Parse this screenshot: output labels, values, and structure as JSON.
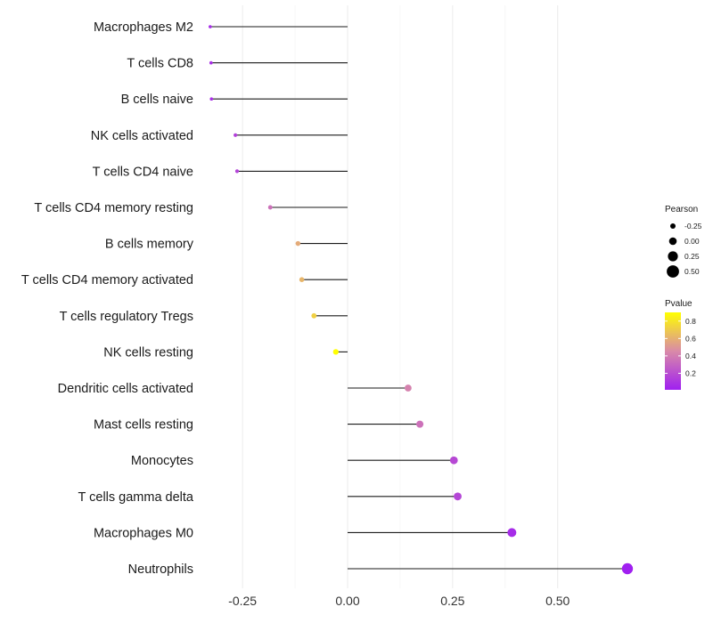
{
  "chart_data": {
    "type": "lollipop",
    "title": "",
    "xlabel": "",
    "ylabel": "",
    "xlim": [
      -0.35,
      0.7
    ],
    "x_ticks": [
      -0.25,
      0.0,
      0.25,
      0.5
    ],
    "x_tick_labels": [
      "-0.25",
      "0.00",
      "0.25",
      "0.50"
    ],
    "grid": true,
    "categories": [
      "Macrophages M2",
      "T cells CD8",
      "B cells naive",
      "NK cells activated",
      "T cells CD4 naive",
      "T cells CD4 memory resting",
      "B cells memory",
      "T cells CD4 memory activated",
      "T cells regulatory  Tregs ",
      "NK cells resting",
      "Dendritic cells activated",
      "Mast cells resting",
      "Monocytes",
      "T cells gamma delta",
      "Macrophages M0",
      "Neutrophils"
    ],
    "pearson": [
      -0.327,
      -0.325,
      -0.324,
      -0.267,
      -0.263,
      -0.184,
      -0.118,
      -0.109,
      -0.08,
      -0.028,
      0.144,
      0.172,
      0.253,
      0.262,
      0.391,
      0.666
    ],
    "pvalue": [
      0.06,
      0.07,
      0.07,
      0.15,
      0.16,
      0.35,
      0.58,
      0.62,
      0.72,
      0.9,
      0.42,
      0.35,
      0.18,
      0.17,
      0.06,
      0.01
    ],
    "legend": {
      "position": "right",
      "size_title": "Pearson",
      "size_breaks": [
        -0.25,
        0.0,
        0.25,
        0.5
      ],
      "size_labels": [
        "-0.25",
        "0.00",
        "0.25",
        "0.50"
      ],
      "color_title": "Pvalue",
      "color_breaks": [
        0.2,
        0.4,
        0.6,
        0.8
      ],
      "color_labels": [
        "0.2",
        "0.4",
        "0.6",
        "0.8"
      ],
      "color_low": "#a020f0",
      "color_mid": "#d98aa8",
      "color_high": "#ffff00",
      "color_range": [
        0.01,
        0.9
      ]
    }
  }
}
